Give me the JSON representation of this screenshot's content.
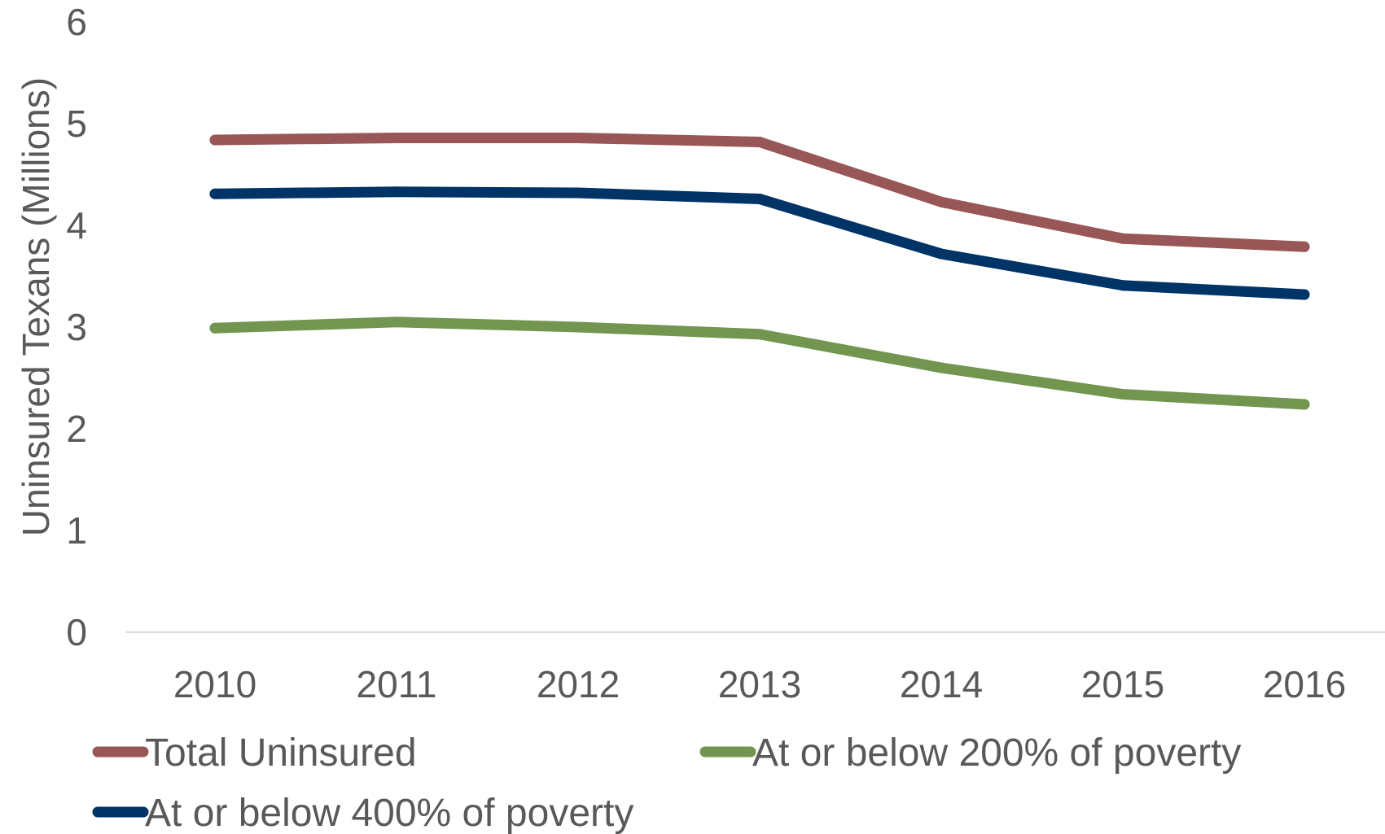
{
  "chart_data": {
    "type": "line",
    "categories": [
      "2010",
      "2011",
      "2012",
      "2013",
      "2014",
      "2015",
      "2016"
    ],
    "ylabel": "Uninsured Texans  (Millions)",
    "xlabel": "",
    "ylim": [
      0,
      6
    ],
    "yticks": [
      "0",
      "1",
      "2",
      "3",
      "4",
      "5",
      "6"
    ],
    "grid": false,
    "legend_position": "bottom",
    "series": [
      {
        "name": "Total Uninsured",
        "color": "#985656",
        "values": [
          4.84,
          4.86,
          4.86,
          4.82,
          4.23,
          3.87,
          3.79
        ]
      },
      {
        "name": "At or below 200% of poverty",
        "color": "#72954f",
        "values": [
          2.99,
          3.05,
          3.0,
          2.93,
          2.6,
          2.34,
          2.24
        ]
      },
      {
        "name": "At or below 400% of poverty",
        "color": "#003366",
        "values": [
          4.31,
          4.33,
          4.32,
          4.26,
          3.72,
          3.41,
          3.32
        ]
      }
    ]
  }
}
